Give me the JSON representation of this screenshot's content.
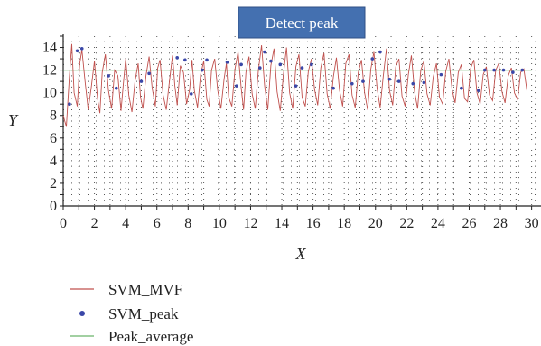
{
  "chart_data": {
    "type": "line",
    "banner": "Detect peak",
    "xlabel": "X",
    "ylabel": "Y",
    "xlim": [
      0,
      30.6
    ],
    "ylim": [
      0,
      15
    ],
    "x_ticks": [
      0,
      2,
      4,
      6,
      8,
      10,
      12,
      14,
      16,
      18,
      20,
      22,
      24,
      26,
      28,
      30
    ],
    "y_ticks": [
      0,
      2,
      4,
      6,
      8,
      10,
      12,
      14
    ],
    "grid": "dotted",
    "legend_position": "bottom-left",
    "colors": {
      "signal": "#c0504d",
      "peaks": "#3a47a8",
      "average": "#6ab36a",
      "banner": "#4470b0"
    },
    "series": [
      {
        "name": "SVM_MVF",
        "kind": "line",
        "x": [
          0.0,
          0.2,
          0.4,
          0.55,
          0.7,
          0.9,
          1.05,
          1.2,
          1.4,
          1.6,
          1.8,
          2.0,
          2.2,
          2.35,
          2.5,
          2.7,
          2.9,
          3.1,
          3.3,
          3.5,
          3.7,
          3.85,
          4.0,
          4.2,
          4.4,
          4.6,
          4.8,
          4.95,
          5.1,
          5.3,
          5.5,
          5.7,
          5.9,
          6.05,
          6.2,
          6.4,
          6.6,
          6.8,
          7.0,
          7.15,
          7.3,
          7.5,
          7.7,
          7.9,
          8.1,
          8.25,
          8.4,
          8.6,
          8.8,
          9.0,
          9.2,
          9.35,
          9.5,
          9.7,
          9.9,
          10.1,
          10.3,
          10.45,
          10.6,
          10.8,
          11.0,
          11.2,
          11.4,
          11.55,
          11.7,
          11.9,
          12.1,
          12.3,
          12.5,
          12.7,
          12.9,
          13.1,
          13.3,
          13.5,
          13.7,
          13.9,
          14.1,
          14.3,
          14.5,
          14.7,
          14.9,
          15.1,
          15.3,
          15.5,
          15.7,
          15.9,
          16.1,
          16.3,
          16.5,
          16.7,
          16.9,
          17.1,
          17.3,
          17.5,
          17.7,
          17.9,
          18.1,
          18.3,
          18.5,
          18.7,
          18.9,
          19.1,
          19.3,
          19.5,
          19.7,
          19.9,
          20.1,
          20.3,
          20.5,
          20.7,
          20.9,
          21.1,
          21.3,
          21.5,
          21.7,
          21.9,
          22.1,
          22.3,
          22.5,
          22.7,
          22.9,
          23.1,
          23.3,
          23.5,
          23.7,
          23.9,
          24.1,
          24.3,
          24.5,
          24.7,
          24.9,
          25.1,
          25.3,
          25.5,
          25.7,
          25.9,
          26.1,
          26.3,
          26.5,
          26.7,
          26.9,
          27.1,
          27.3,
          27.5,
          27.7,
          27.9,
          28.1,
          28.3,
          28.5,
          28.7,
          28.9,
          29.1,
          29.3,
          29.5,
          29.7
        ],
        "y": [
          8.0,
          7.0,
          11.5,
          14.3,
          10.0,
          8.8,
          12.5,
          13.8,
          11.0,
          8.5,
          10.5,
          12.8,
          9.5,
          8.2,
          11.8,
          13.4,
          10.2,
          8.6,
          12.0,
          11.5,
          8.4,
          10.8,
          13.0,
          9.8,
          8.3,
          11.0,
          12.6,
          9.6,
          8.6,
          11.5,
          13.2,
          10.4,
          8.8,
          12.2,
          12.9,
          9.8,
          8.5,
          11.0,
          13.3,
          10.6,
          8.9,
          12.4,
          11.8,
          9.0,
          10.3,
          12.9,
          10.2,
          8.7,
          11.6,
          12.8,
          9.4,
          8.8,
          12.0,
          13.0,
          10.2,
          8.6,
          11.2,
          12.6,
          9.6,
          8.8,
          12.1,
          13.6,
          10.4,
          8.5,
          11.8,
          13.2,
          9.9,
          8.6,
          12.0,
          14.2,
          10.6,
          8.5,
          12.4,
          13.9,
          10.1,
          8.4,
          11.6,
          14.0,
          10.0,
          8.6,
          12.3,
          13.4,
          9.6,
          8.8,
          11.9,
          13.0,
          10.3,
          8.9,
          12.2,
          13.5,
          9.9,
          8.6,
          11.4,
          13.1,
          10.2,
          8.8,
          12.6,
          13.4,
          9.8,
          8.7,
          11.8,
          12.9,
          10.0,
          8.5,
          12.1,
          13.6,
          10.4,
          8.7,
          11.5,
          13.9,
          10.2,
          8.9,
          12.3,
          13.0,
          9.7,
          8.8,
          11.6,
          13.3,
          10.1,
          8.6,
          12.0,
          12.8,
          9.9,
          8.9,
          11.4,
          12.6,
          9.6,
          9.0,
          11.9,
          13.0,
          10.3,
          9.1,
          11.8,
          12.5,
          9.5,
          9.2,
          12.2,
          12.9,
          10.0,
          9.0,
          11.6,
          12.3,
          9.8,
          9.3,
          12.0,
          12.6,
          10.1,
          9.1,
          11.5,
          12.2,
          10.0,
          9.4,
          11.8,
          12.1,
          10.2
        ]
      },
      {
        "name": "SVM_peak",
        "kind": "scatter",
        "x": [
          0.4,
          0.9,
          1.2,
          2.9,
          3.4,
          5.0,
          5.5,
          7.3,
          7.8,
          8.2,
          8.9,
          9.2,
          10.5,
          11.1,
          11.4,
          12.6,
          12.9,
          13.3,
          13.9,
          14.9,
          15.3,
          15.9,
          17.3,
          18.5,
          19.2,
          19.8,
          20.3,
          20.9,
          21.5,
          22.4,
          23.1,
          24.2,
          25.5,
          26.6,
          27.0,
          27.6,
          28.2,
          28.8,
          29.4
        ],
        "y": [
          9.0,
          13.7,
          13.9,
          11.5,
          10.4,
          11.0,
          11.7,
          13.1,
          12.9,
          9.9,
          12.0,
          12.9,
          12.7,
          10.6,
          12.5,
          12.2,
          13.6,
          12.8,
          12.5,
          10.6,
          12.2,
          12.5,
          10.4,
          10.8,
          11.0,
          13.0,
          13.6,
          11.2,
          11.0,
          10.8,
          10.9,
          11.6,
          10.4,
          10.2,
          12.0,
          12.0,
          12.0,
          11.8,
          12.0
        ]
      },
      {
        "name": "Peak_average",
        "kind": "hline",
        "y": 12.0
      }
    ]
  }
}
